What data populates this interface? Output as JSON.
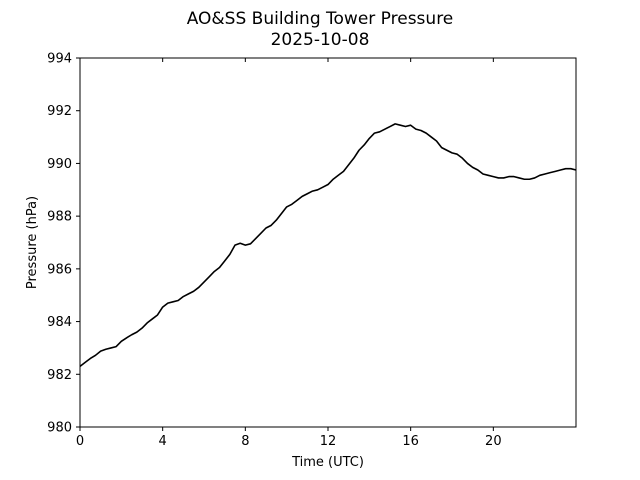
{
  "chart_data": {
    "type": "line",
    "title": "AO&SS Building Tower Pressure",
    "subtitle": "2025-10-08",
    "xlabel": "Time (UTC)",
    "ylabel": "Pressure (hPa)",
    "xlim": [
      0,
      24
    ],
    "ylim": [
      980,
      994
    ],
    "xticks": [
      0,
      4,
      8,
      12,
      16,
      20
    ],
    "yticks": [
      980,
      982,
      984,
      986,
      988,
      990,
      992,
      994
    ],
    "grid": false,
    "series": [
      {
        "color": "#000000",
        "x": [
          0,
          0.25,
          0.5,
          0.75,
          1.0,
          1.25,
          1.5,
          1.75,
          2.0,
          2.25,
          2.5,
          2.75,
          3.0,
          3.25,
          3.5,
          3.75,
          4.0,
          4.25,
          4.5,
          4.75,
          5.0,
          5.25,
          5.5,
          5.75,
          6.0,
          6.25,
          6.5,
          6.75,
          7.0,
          7.25,
          7.5,
          7.75,
          8.0,
          8.25,
          8.5,
          8.75,
          9.0,
          9.25,
          9.5,
          9.75,
          10.0,
          10.25,
          10.5,
          10.75,
          11.0,
          11.25,
          11.5,
          11.75,
          12.0,
          12.25,
          12.5,
          12.75,
          13.0,
          13.25,
          13.5,
          13.75,
          14.0,
          14.25,
          14.5,
          14.75,
          15.0,
          15.25,
          15.5,
          15.75,
          16.0,
          16.25,
          16.5,
          16.75,
          17.0,
          17.25,
          17.5,
          17.75,
          18.0,
          18.25,
          18.5,
          18.75,
          19.0,
          19.25,
          19.5,
          19.75,
          20.0,
          20.25,
          20.5,
          20.75,
          21.0,
          21.25,
          21.5,
          21.75,
          22.0,
          22.25,
          22.5,
          22.75,
          23.0,
          23.25,
          23.5,
          23.75,
          24.0
        ],
        "y": [
          982.3,
          982.45,
          982.6,
          982.72,
          982.88,
          982.95,
          983.0,
          983.05,
          983.25,
          983.38,
          983.5,
          983.6,
          983.75,
          983.95,
          984.1,
          984.25,
          984.55,
          984.7,
          984.75,
          984.8,
          984.95,
          985.05,
          985.15,
          985.3,
          985.5,
          985.7,
          985.9,
          986.05,
          986.3,
          986.55,
          986.9,
          986.97,
          986.9,
          986.95,
          987.15,
          987.35,
          987.55,
          987.65,
          987.85,
          988.1,
          988.35,
          988.45,
          988.6,
          988.75,
          988.85,
          988.95,
          989.0,
          989.1,
          989.2,
          989.4,
          989.55,
          989.7,
          989.95,
          990.2,
          990.5,
          990.7,
          990.95,
          991.15,
          991.2,
          991.3,
          991.4,
          991.5,
          991.45,
          991.4,
          991.45,
          991.3,
          991.25,
          991.15,
          991.0,
          990.85,
          990.6,
          990.5,
          990.4,
          990.35,
          990.2,
          990.0,
          989.85,
          989.75,
          989.6,
          989.55,
          989.5,
          989.45,
          989.45,
          989.5,
          989.5,
          989.45,
          989.4,
          989.4,
          989.45,
          989.55,
          989.6,
          989.65,
          989.7,
          989.75,
          989.8,
          989.8,
          989.75
        ]
      }
    ]
  }
}
